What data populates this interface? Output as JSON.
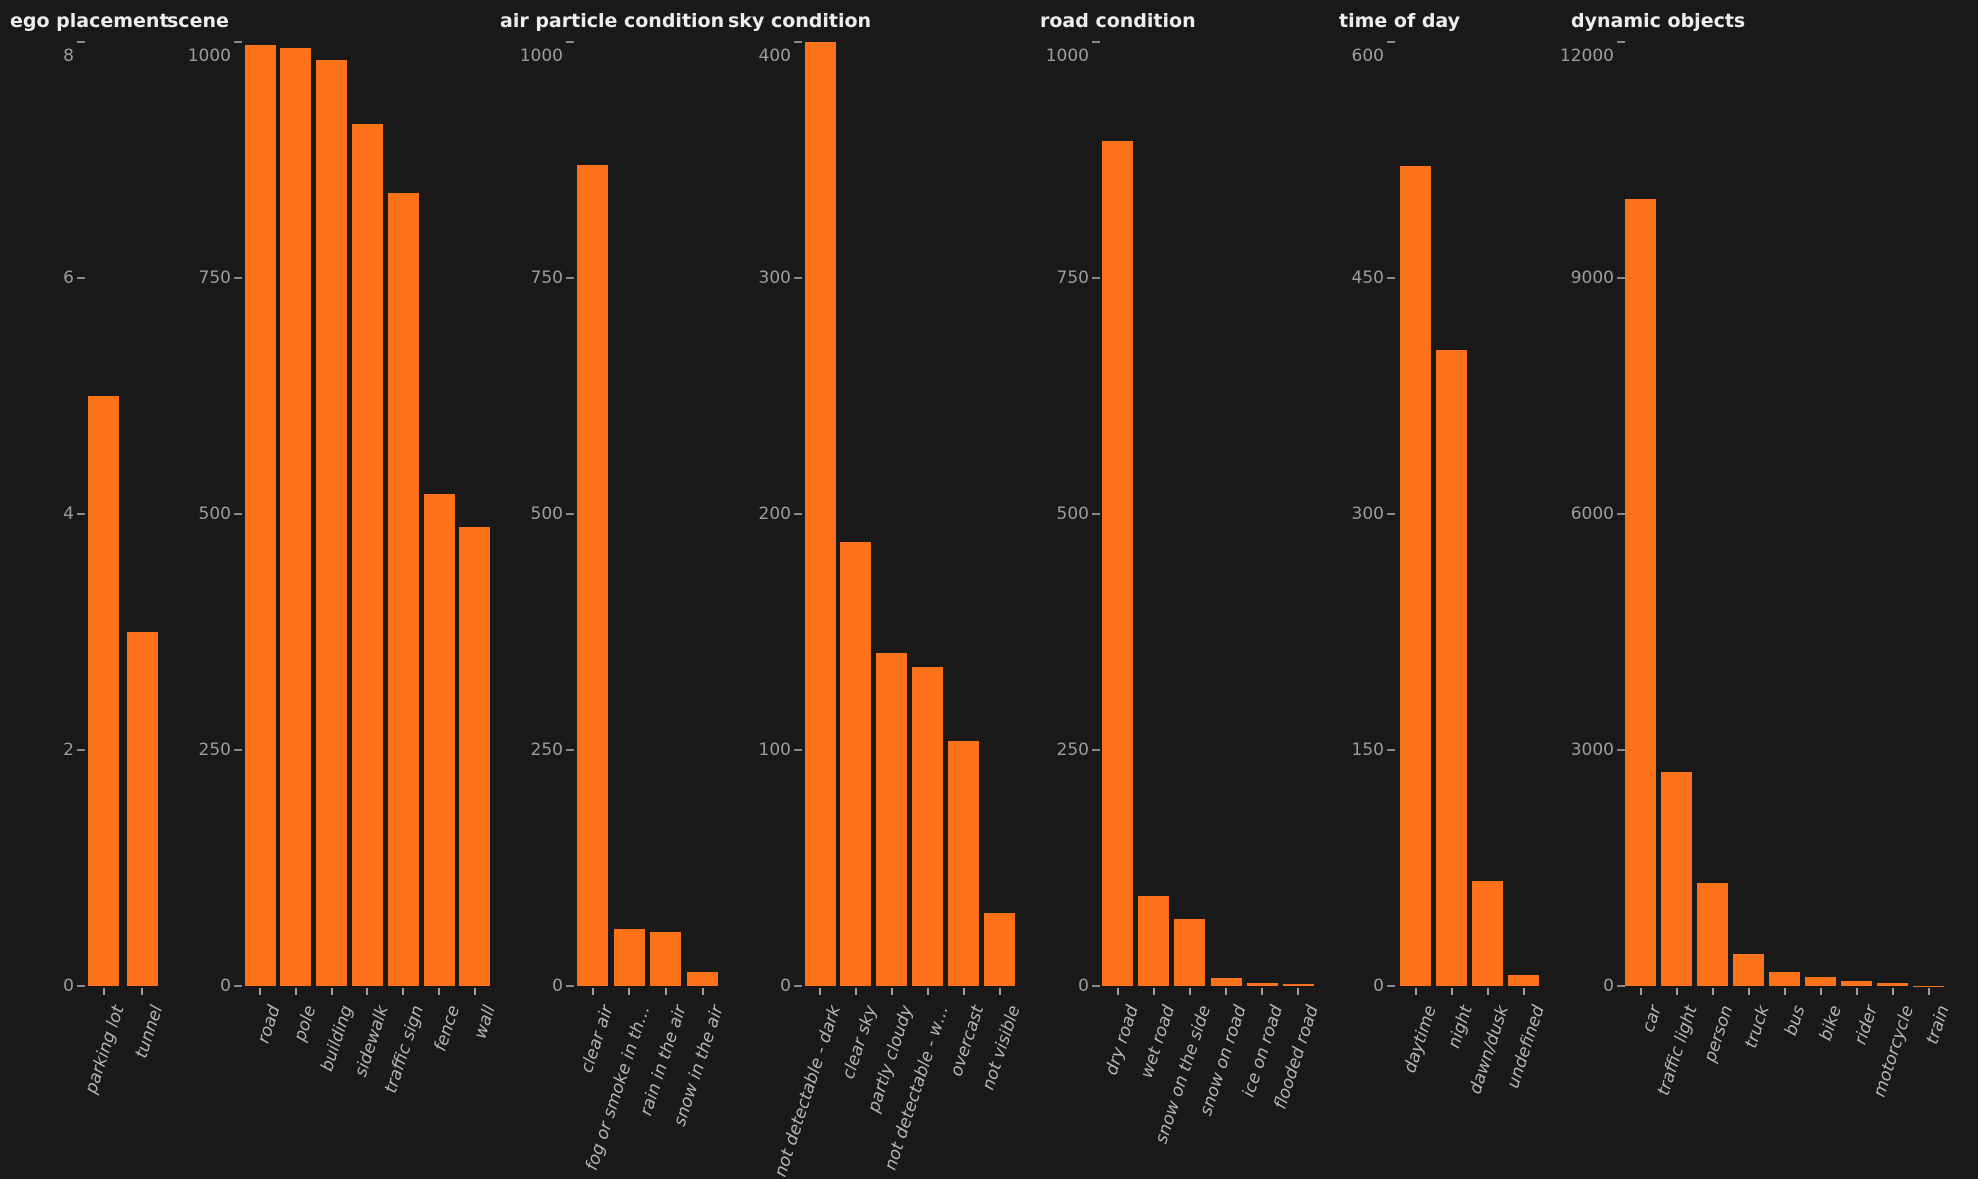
{
  "page": {
    "colors": {
      "background": "#191919",
      "bar": "#fd7118",
      "title_text": "#ededed",
      "axis_text": "#9c9c9c",
      "category_text": "#b5b5b5",
      "y_tick_mark": "#8a8a8a",
      "x_tick_mark": "#9f9f9f"
    }
  },
  "chart_data": [
    {
      "type": "bar",
      "title": "ego placement",
      "categories": [
        "parking lot",
        "tunnel"
      ],
      "values": [
        5,
        3
      ],
      "y_ticks": [
        0,
        2,
        4,
        6,
        8
      ],
      "ylim": [
        0,
        8
      ],
      "xlabel": "",
      "ylabel": "",
      "grid": false,
      "legend": "none",
      "color": "#fd7118"
    },
    {
      "type": "bar",
      "title": "scene",
      "categories": [
        "road",
        "pole",
        "building",
        "sidewalk",
        "traffic sign",
        "fence",
        "wall"
      ],
      "values": [
        997,
        994,
        981,
        913,
        840,
        521,
        486
      ],
      "y_ticks": [
        0,
        250,
        500,
        750,
        1000
      ],
      "ylim": [
        0,
        1000
      ],
      "xlabel": "",
      "ylabel": "",
      "grid": false,
      "legend": "none",
      "color": "#fd7118"
    },
    {
      "type": "bar",
      "title": "air particle condition",
      "categories": [
        "clear air",
        "fog or smoke in th…",
        "rain in the air",
        "snow in the air"
      ],
      "values": [
        870,
        60,
        57,
        15
      ],
      "y_ticks": [
        0,
        250,
        500,
        750,
        1000
      ],
      "ylim": [
        0,
        1000
      ],
      "xlabel": "",
      "ylabel": "",
      "grid": false,
      "legend": "none",
      "color": "#fd7118"
    },
    {
      "type": "bar",
      "title": "sky condition",
      "categories": [
        "not detectable - dark",
        "clear sky",
        "partly cloudy",
        "not detectable - w…",
        "overcast",
        "not visible"
      ],
      "values": [
        400,
        188,
        141,
        135,
        104,
        31
      ],
      "y_ticks": [
        0,
        100,
        200,
        300,
        400
      ],
      "ylim": [
        0,
        400
      ],
      "xlabel": "",
      "ylabel": "",
      "grid": false,
      "legend": "none",
      "color": "#fd7118"
    },
    {
      "type": "bar",
      "title": "road condition",
      "categories": [
        "dry road",
        "wet road",
        "snow on the side",
        "snow on road",
        "ice on road",
        "flooded road"
      ],
      "values": [
        895,
        95,
        71,
        9,
        3,
        2
      ],
      "y_ticks": [
        0,
        250,
        500,
        750,
        1000
      ],
      "ylim": [
        0,
        1000
      ],
      "xlabel": "",
      "ylabel": "",
      "grid": false,
      "legend": "none",
      "color": "#fd7118"
    },
    {
      "type": "bar",
      "title": "time of day",
      "categories": [
        "daytime",
        "night",
        "dawn/dusk",
        "undefined"
      ],
      "values": [
        521,
        404,
        67,
        7
      ],
      "y_ticks": [
        0,
        150,
        300,
        450,
        600
      ],
      "ylim": [
        0,
        600
      ],
      "xlabel": "",
      "ylabel": "",
      "grid": false,
      "legend": "none",
      "color": "#fd7118"
    },
    {
      "type": "bar",
      "title": "dynamic objects",
      "categories": [
        "car",
        "traffic light",
        "person",
        "truck",
        "bus",
        "bike",
        "rider",
        "motorcycle",
        "train"
      ],
      "values": [
        10010,
        2720,
        1310,
        410,
        183,
        110,
        63,
        38,
        3
      ],
      "y_ticks": [
        0,
        3000,
        6000,
        9000,
        12000
      ],
      "ylim": [
        0,
        12000
      ],
      "xlabel": "",
      "ylabel": "",
      "grid": false,
      "legend": "none",
      "color": "#fd7118"
    }
  ]
}
